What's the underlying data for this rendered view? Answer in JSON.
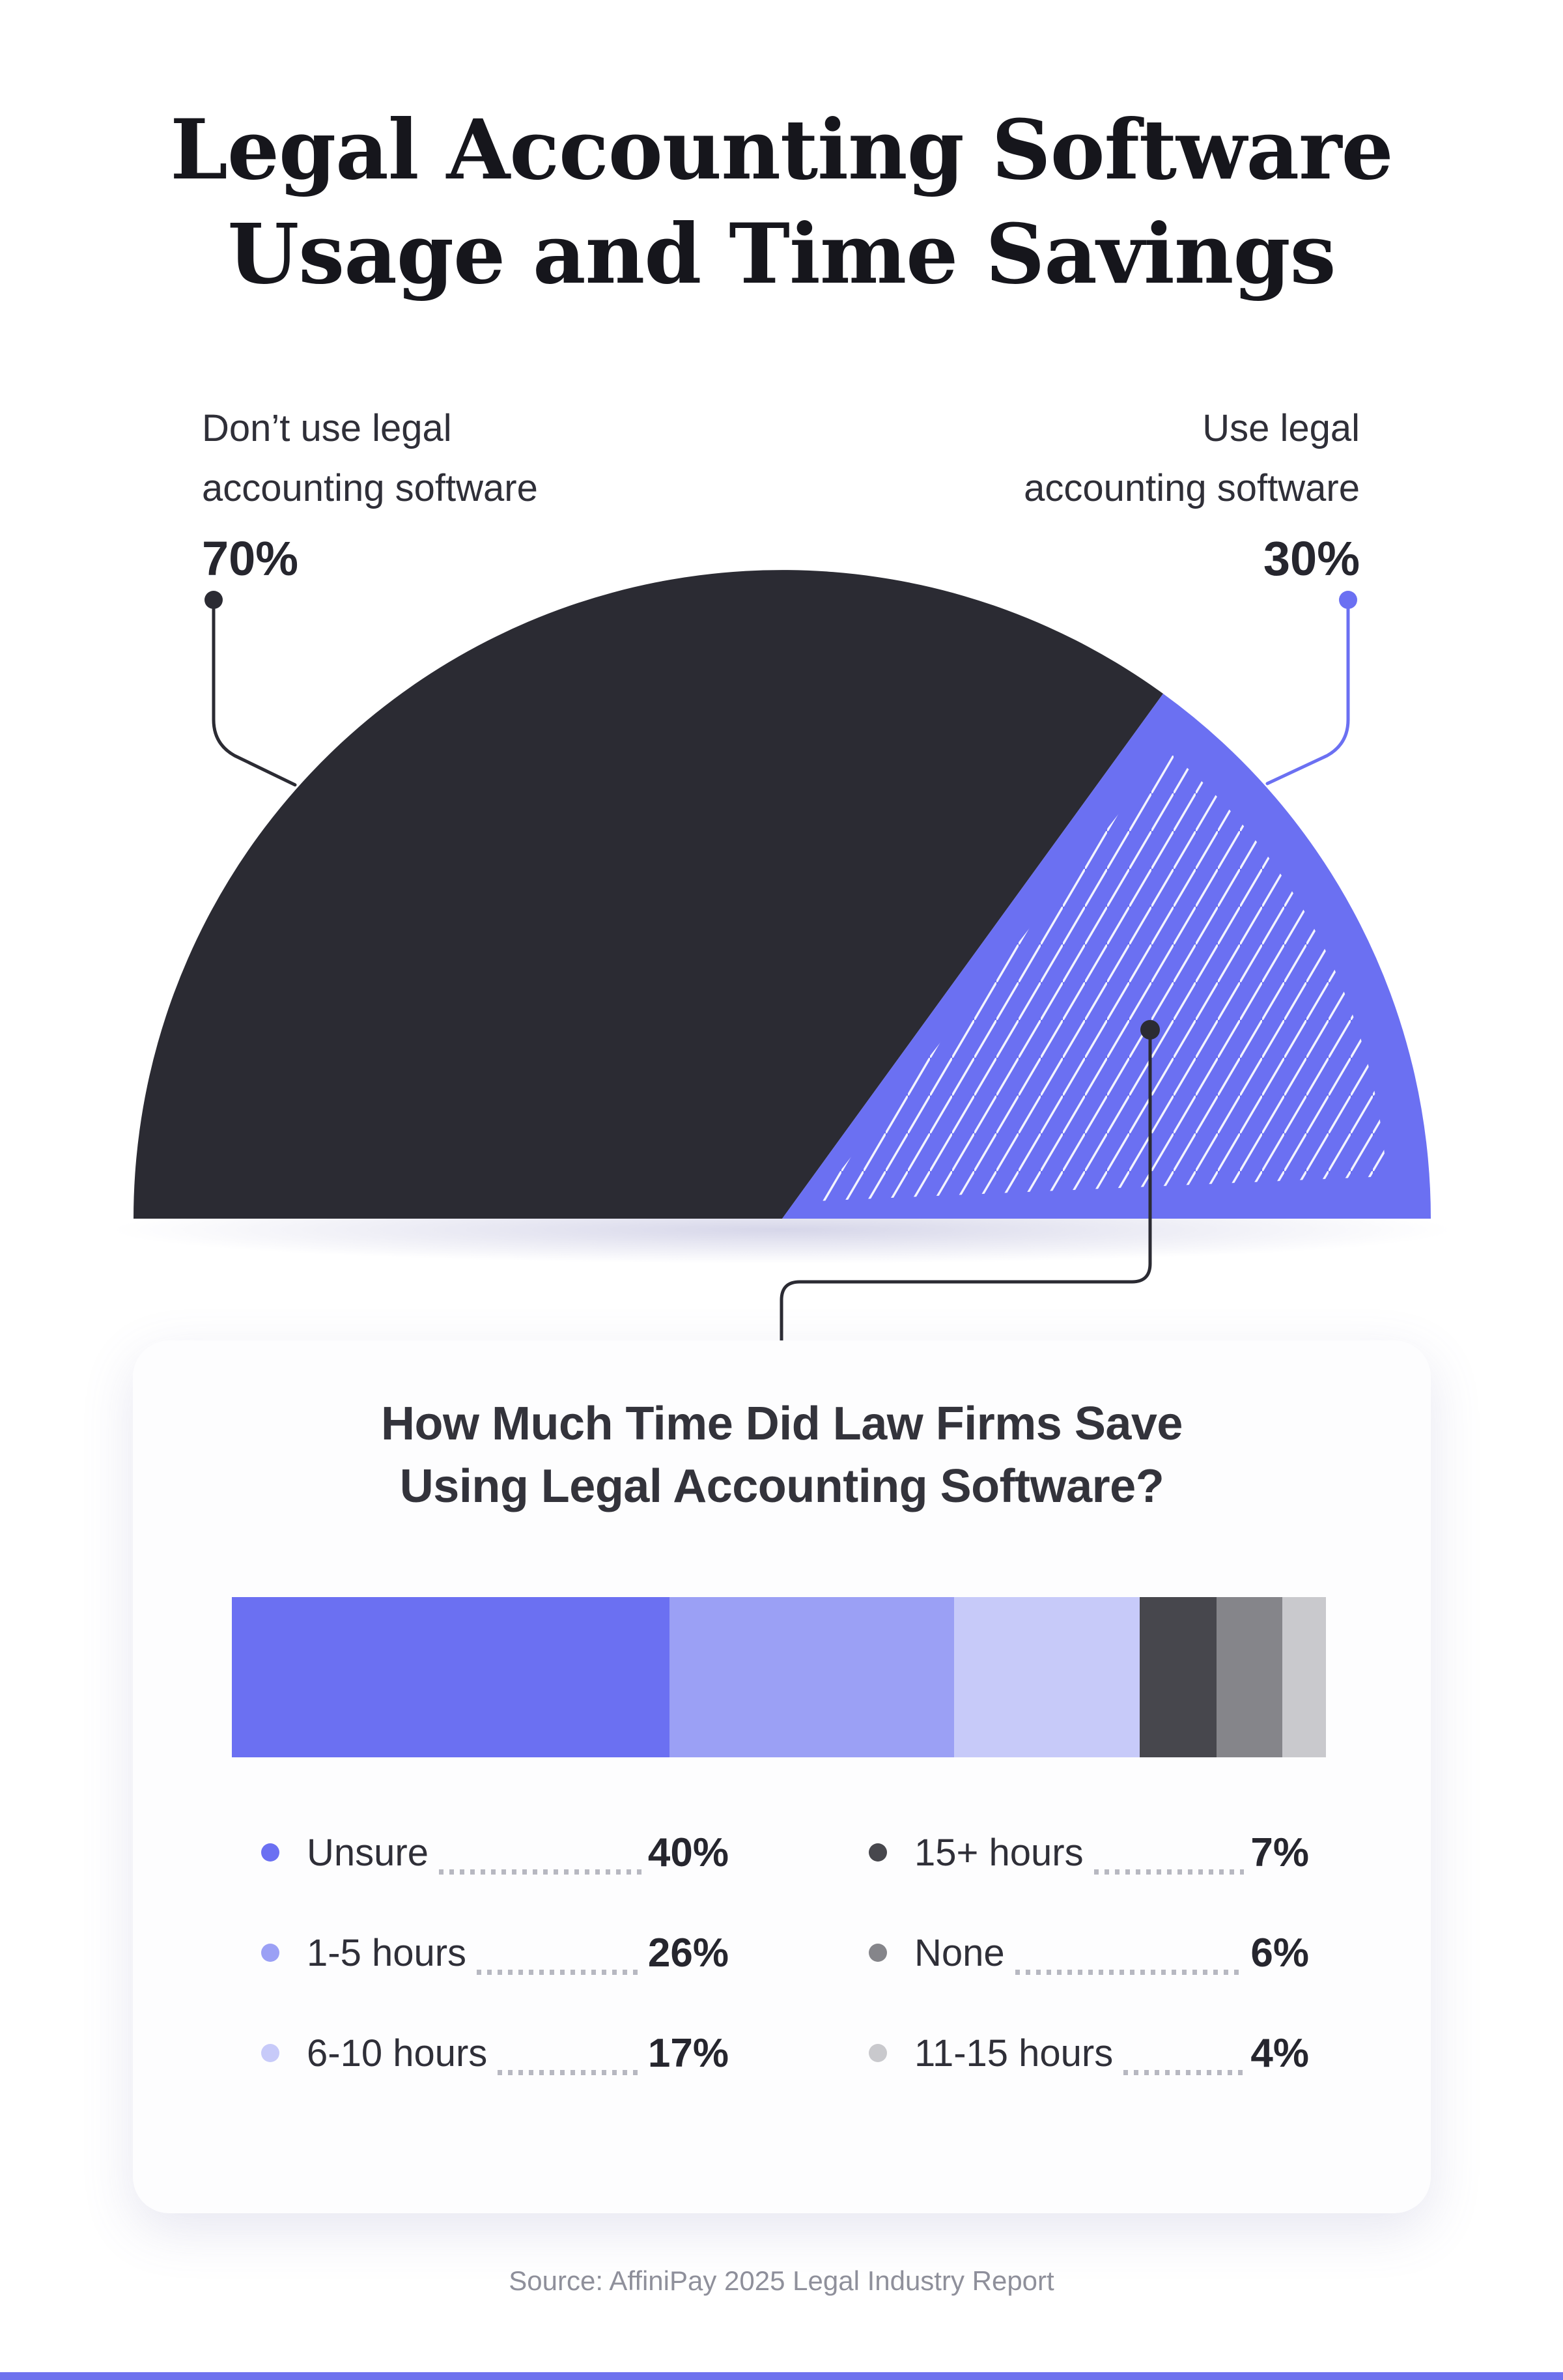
{
  "page": {
    "title_line1": "Legal Accounting Software",
    "title_line2": "Usage and Time Savings",
    "source": "Source: AffiniPay 2025 Legal Industry Report"
  },
  "usage_semicircle": {
    "left_callout": {
      "label_line1": "Don’t use legal",
      "label_line2": "accounting software",
      "value_label": "70%"
    },
    "right_callout": {
      "label_line1": "Use legal",
      "label_line2": "accounting software",
      "value_label": "30%"
    }
  },
  "card": {
    "title_line1": "How Much Time Did Law Firms Save",
    "title_line2": "Using Legal Accounting Software?"
  },
  "legend": {
    "items": [
      {
        "label": "Unsure",
        "value_label": "40%",
        "color": "#6b70f2"
      },
      {
        "label": "1-5 hours",
        "value_label": "26%",
        "color": "#9ba0f5"
      },
      {
        "label": "6-10 hours",
        "value_label": "17%",
        "color": "#c7caf9"
      },
      {
        "label": "15+ hours",
        "value_label": "7%",
        "color": "#47474d"
      },
      {
        "label": "None",
        "value_label": "6%",
        "color": "#85858a"
      },
      {
        "label": "11-15 hours",
        "value_label": "4%",
        "color": "#c9c9cd"
      }
    ]
  },
  "colors": {
    "accent_purple": "#6b70f2",
    "dark": "#2b2b33",
    "card_background": "#fdfdfe",
    "background_corner": "#aeb1f2",
    "leader_dots": "#b7b8c1",
    "source_text": "#8f909b"
  },
  "chart_data": [
    {
      "type": "pie",
      "shape": "semicircle",
      "title": "Legal Accounting Software Usage",
      "categories": [
        "Don’t use legal accounting software",
        "Use legal accounting software"
      ],
      "values": [
        70,
        30
      ],
      "colors": [
        "#2b2b33",
        "#6b70f2"
      ],
      "annotations": [
        "70%",
        "30%"
      ],
      "note": "30% wedge has white diagonal hatching; callout leader lines point to each slice"
    },
    {
      "type": "bar",
      "stacked": true,
      "orientation": "horizontal",
      "title": "How Much Time Did Law Firms Save Using Legal Accounting Software?",
      "categories": [
        "Unsure",
        "1-5 hours",
        "6-10 hours",
        "15+ hours",
        "None",
        "11-15 hours"
      ],
      "values": [
        40,
        26,
        17,
        7,
        6,
        4
      ],
      "colors": [
        "#6b70f2",
        "#9ba0f5",
        "#c7caf9",
        "#47474d",
        "#85858a",
        "#c9c9cd"
      ],
      "xlim": [
        0,
        100
      ],
      "legend_position": "bottom",
      "grid": false
    }
  ]
}
